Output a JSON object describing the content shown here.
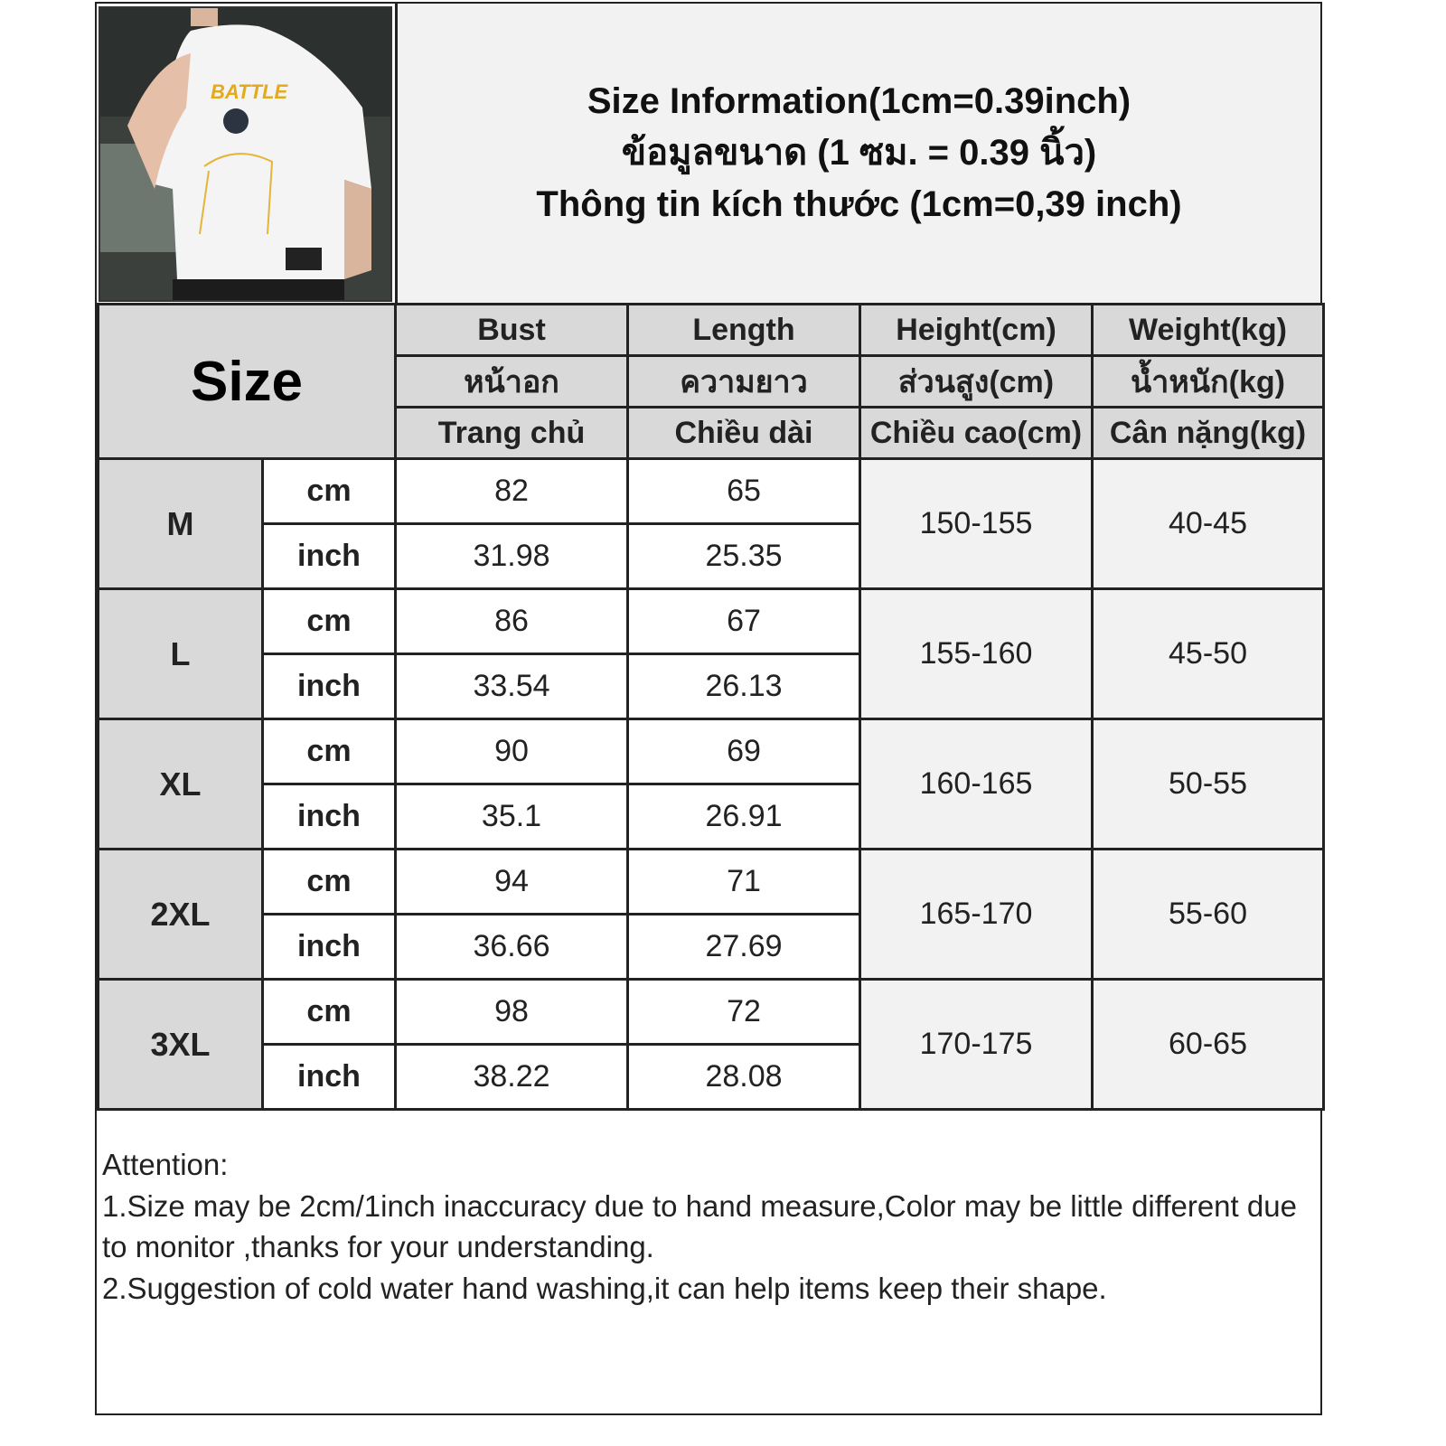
{
  "title": {
    "line1": "Size Information(1cm=0.39inch)",
    "line2": "ข้อมูลขนาด (1 ซม. = 0.39 นิ้ว)",
    "line3": "Thông tin kích thước (1cm=0,39 inch)"
  },
  "photo": {
    "shirt_print": "BATTLE"
  },
  "table": {
    "size_header": "Size",
    "columns": [
      {
        "en": "Bust",
        "th": "หน้าอก",
        "vi": "Trang chủ"
      },
      {
        "en": "Length",
        "th": "ความยาว",
        "vi": "Chiều dài"
      },
      {
        "en": "Height(cm)",
        "th": "ส่วนสูง(cm)",
        "vi": "Chiều cao(cm)"
      },
      {
        "en": "Weight(kg)",
        "th": "น้ำหนัก(kg)",
        "vi": "Cân nặng(kg)"
      }
    ],
    "unit_cm": "cm",
    "unit_inch": "inch",
    "rows": [
      {
        "size": "M",
        "bust_cm": "82",
        "length_cm": "65",
        "bust_inch": "31.98",
        "length_inch": "25.35",
        "height": "150-155",
        "weight": "40-45"
      },
      {
        "size": "L",
        "bust_cm": "86",
        "length_cm": "67",
        "bust_inch": "33.54",
        "length_inch": "26.13",
        "height": "155-160",
        "weight": "45-50"
      },
      {
        "size": "XL",
        "bust_cm": "90",
        "length_cm": "69",
        "bust_inch": "35.1",
        "length_inch": "26.91",
        "height": "160-165",
        "weight": "50-55"
      },
      {
        "size": "2XL",
        "bust_cm": "94",
        "length_cm": "71",
        "bust_inch": "36.66",
        "length_inch": "27.69",
        "height": "165-170",
        "weight": "55-60"
      },
      {
        "size": "3XL",
        "bust_cm": "98",
        "length_cm": "72",
        "bust_inch": "38.22",
        "length_inch": "28.08",
        "height": "170-175",
        "weight": "60-65"
      }
    ]
  },
  "notes": {
    "heading": "Attention:",
    "line1": "1.Size may be 2cm/1inch inaccuracy due to hand measure,Color may be little different due to monitor ,thanks for your understanding.",
    "line2": "2.Suggestion of cold water hand washing,it can help items keep their shape."
  }
}
